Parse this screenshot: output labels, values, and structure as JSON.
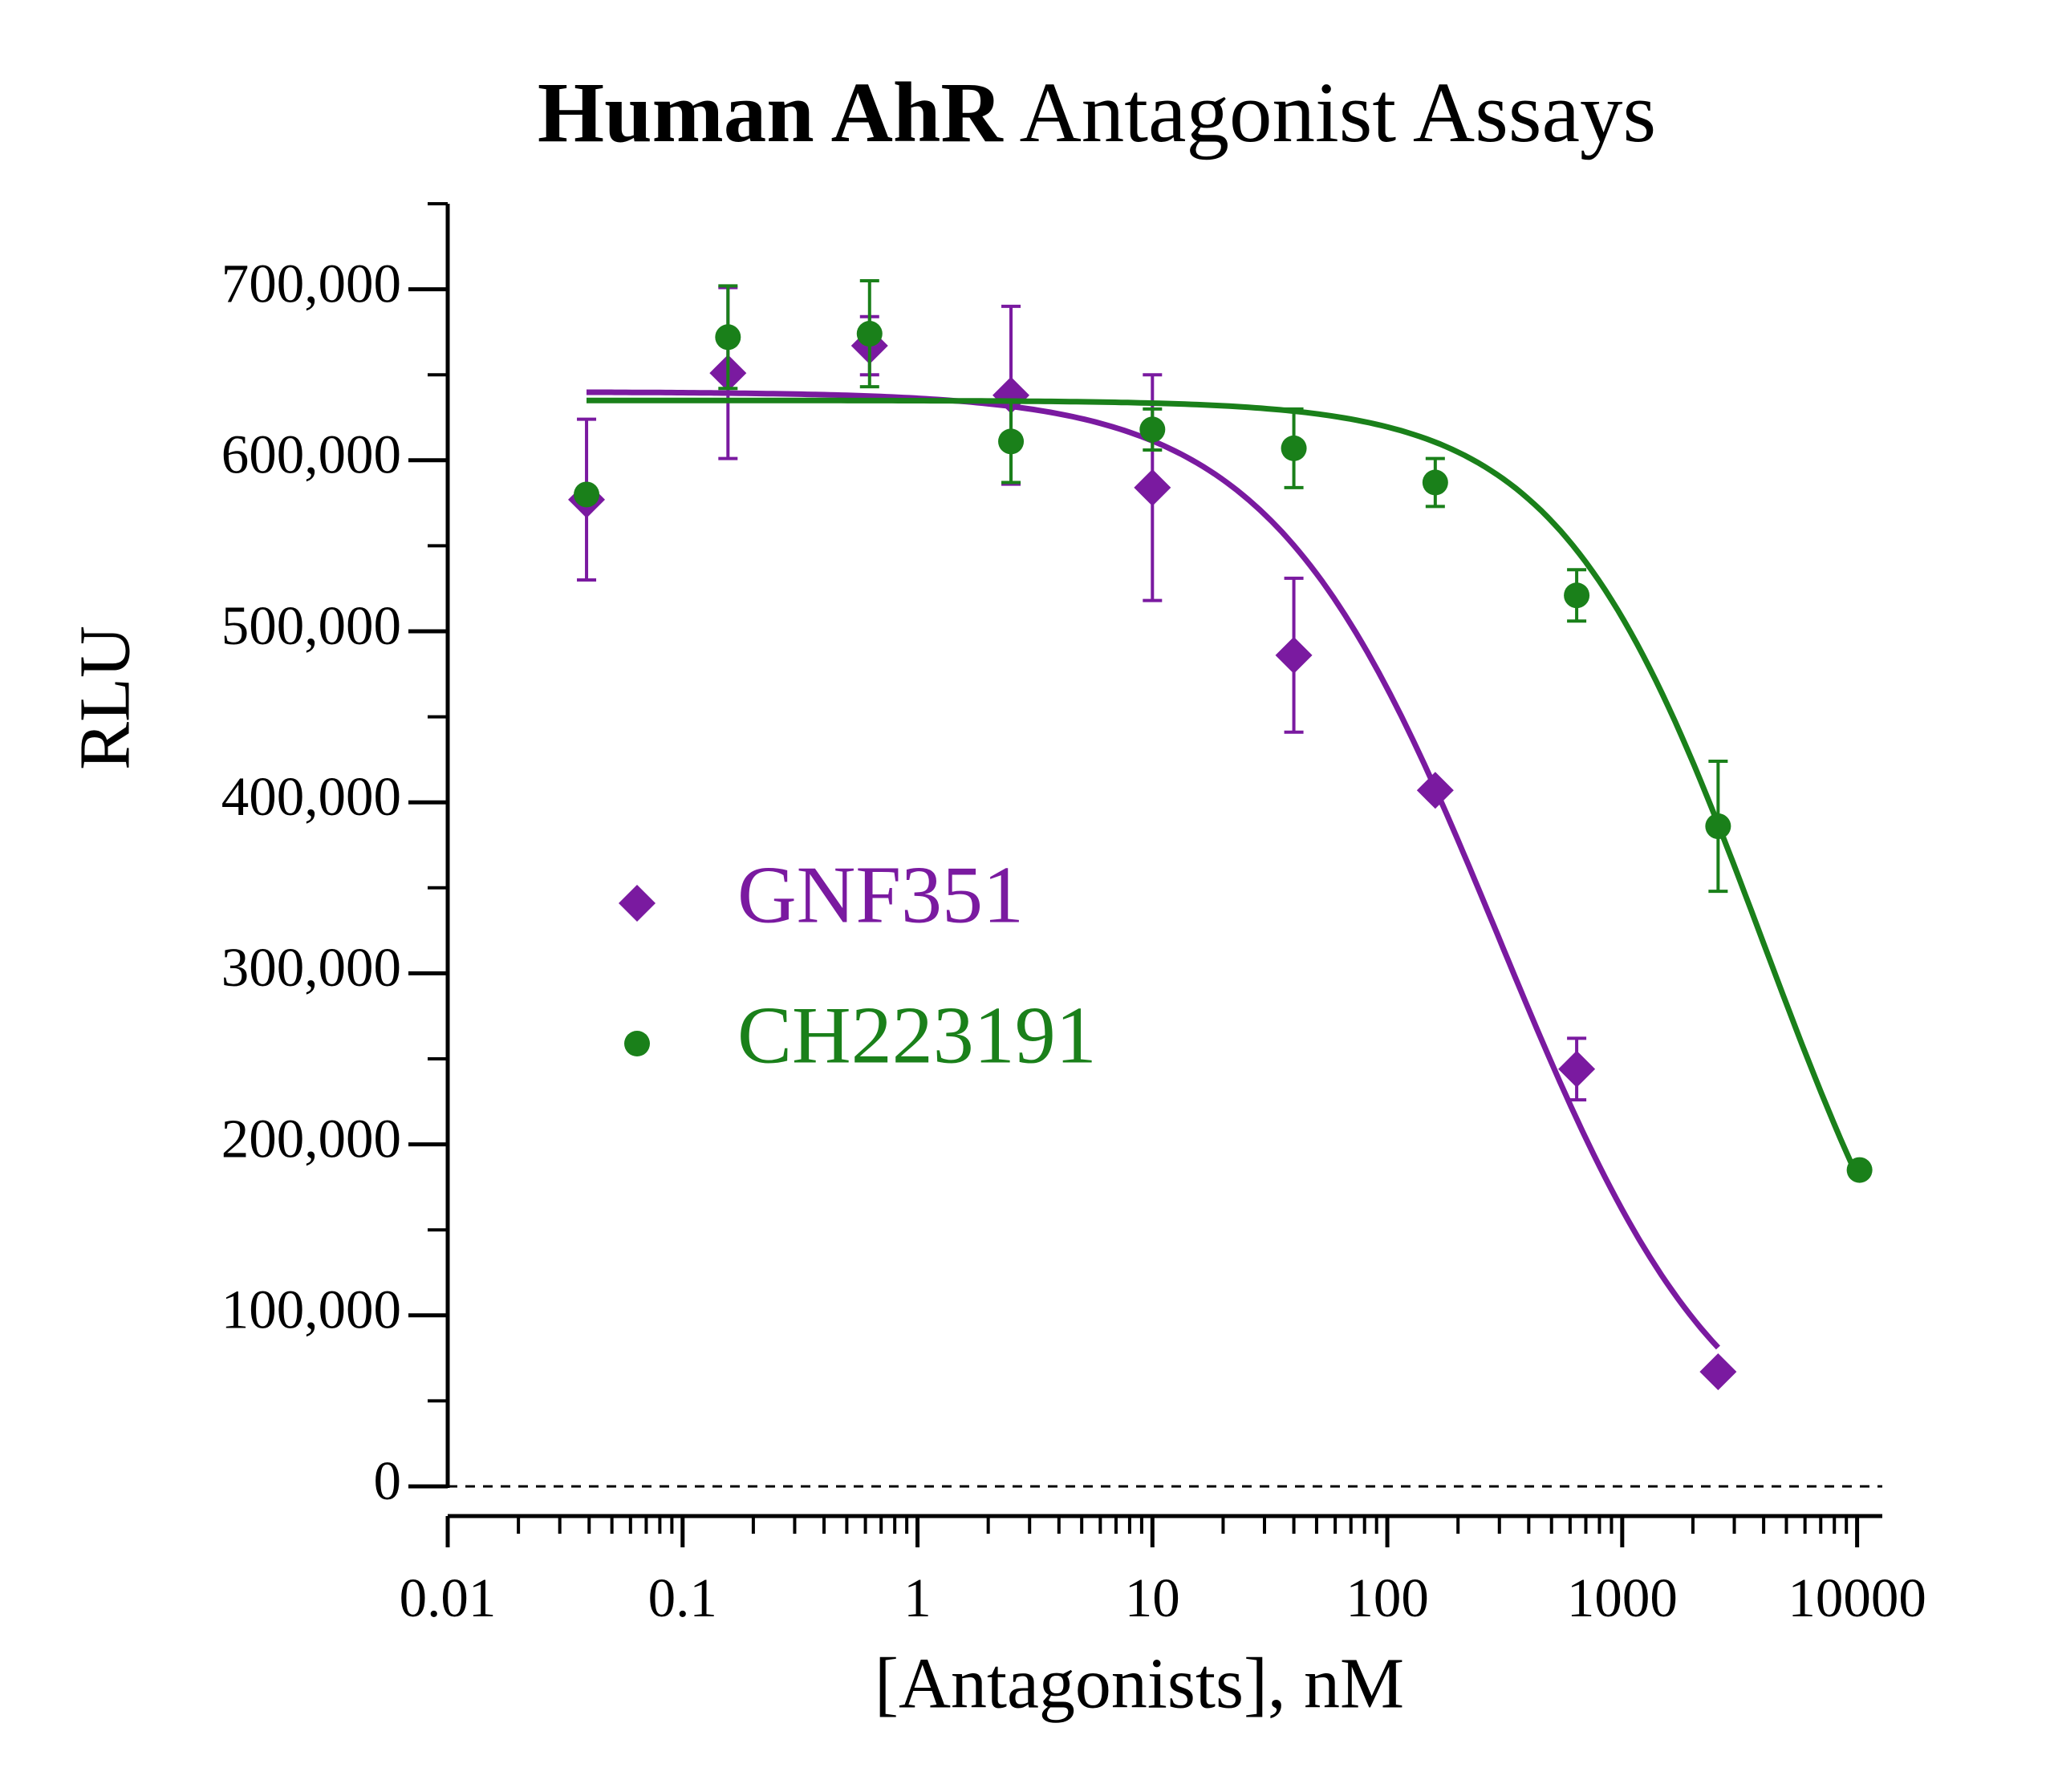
{
  "chart_data": {
    "type": "scatter",
    "title_bold": "Human AhR",
    "title": "Antagonist Assays",
    "x_label": "[Antagonists], nM",
    "y_label": "RLU",
    "xlog": true,
    "xlim": [
      0.01,
      12800
    ],
    "xticks": [
      0.01,
      0.1,
      1,
      10,
      100,
      1000,
      10000
    ],
    "ylim": [
      0,
      750000
    ],
    "yticks": [
      0,
      {
        "value": 100000,
        "label": "100,000"
      },
      {
        "value": 200000,
        "label": "200,000"
      },
      {
        "value": 300000,
        "label": "300,000"
      },
      {
        "value": 400000,
        "label": "400,000"
      },
      {
        "value": 500000,
        "label": "500,000"
      },
      {
        "value": 600000,
        "label": "600,000"
      },
      {
        "value": 700000,
        "label": "700,000"
      }
    ],
    "yminorticks": [
      50000,
      150000,
      250000,
      350000,
      450000,
      550000,
      650000,
      750000
    ],
    "zero_line": true,
    "series": [
      {
        "name": "GNF351",
        "color": "#7a1aa0",
        "marker": "diamond",
        "x": [
          0.039,
          0.156,
          0.625,
          2.5,
          10,
          40,
          160,
          640,
          2560
        ],
        "values": [
          577000,
          651000,
          667000,
          638000,
          584000,
          486000,
          407000,
          244000,
          67000
        ],
        "errors": [
          47000,
          50000,
          17000,
          52000,
          66000,
          45000,
          0,
          18000,
          0
        ],
        "fit": {
          "top": 640000,
          "bottom": 0,
          "ic50": 300,
          "hill": 0.9
        }
      },
      {
        "name": "CH223191",
        "color": "#1a801a",
        "marker": "circle",
        "x": [
          0.039,
          0.156,
          0.625,
          2.5,
          10,
          40,
          160,
          640,
          2560,
          10240
        ],
        "values": [
          580000,
          672000,
          674000,
          611000,
          618000,
          607000,
          587000,
          521000,
          386000,
          185000
        ],
        "errors": [
          0,
          30000,
          31000,
          24000,
          12000,
          23000,
          14000,
          15000,
          38000,
          0
        ],
        "fit": {
          "top": 635000,
          "bottom": 0,
          "ic50": 4000,
          "hill": 1
        }
      }
    ]
  }
}
